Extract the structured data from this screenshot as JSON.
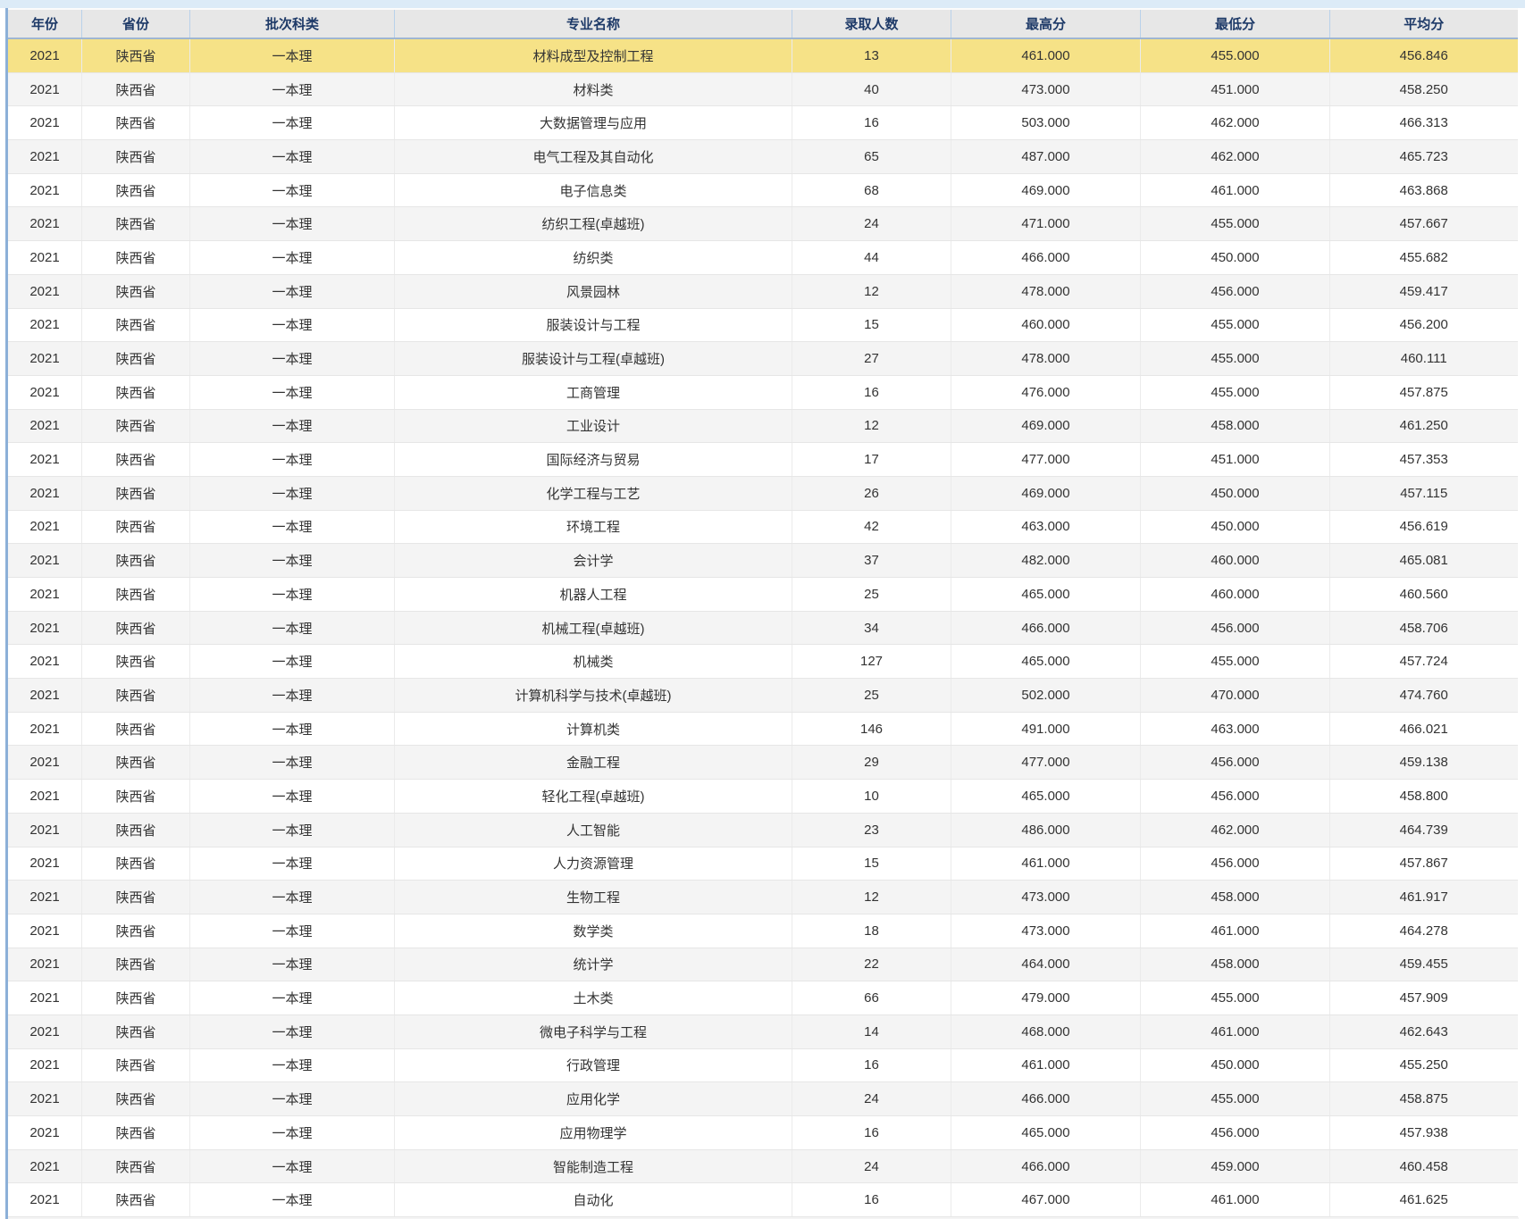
{
  "table": {
    "columns": [
      {
        "key": "year",
        "label": "年份"
      },
      {
        "key": "province",
        "label": "省份"
      },
      {
        "key": "batch",
        "label": "批次科类"
      },
      {
        "key": "major",
        "label": "专业名称"
      },
      {
        "key": "admit-count",
        "label": "录取人数"
      },
      {
        "key": "max-score",
        "label": "最高分"
      },
      {
        "key": "min-score",
        "label": "最低分"
      },
      {
        "key": "avg-score",
        "label": "平均分"
      }
    ],
    "highlighted_row_index": 0,
    "rows": [
      [
        "2021",
        "陕西省",
        "一本理",
        "材料成型及控制工程",
        "13",
        "461.000",
        "455.000",
        "456.846"
      ],
      [
        "2021",
        "陕西省",
        "一本理",
        "材料类",
        "40",
        "473.000",
        "451.000",
        "458.250"
      ],
      [
        "2021",
        "陕西省",
        "一本理",
        "大数据管理与应用",
        "16",
        "503.000",
        "462.000",
        "466.313"
      ],
      [
        "2021",
        "陕西省",
        "一本理",
        "电气工程及其自动化",
        "65",
        "487.000",
        "462.000",
        "465.723"
      ],
      [
        "2021",
        "陕西省",
        "一本理",
        "电子信息类",
        "68",
        "469.000",
        "461.000",
        "463.868"
      ],
      [
        "2021",
        "陕西省",
        "一本理",
        "纺织工程(卓越班)",
        "24",
        "471.000",
        "455.000",
        "457.667"
      ],
      [
        "2021",
        "陕西省",
        "一本理",
        "纺织类",
        "44",
        "466.000",
        "450.000",
        "455.682"
      ],
      [
        "2021",
        "陕西省",
        "一本理",
        "风景园林",
        "12",
        "478.000",
        "456.000",
        "459.417"
      ],
      [
        "2021",
        "陕西省",
        "一本理",
        "服装设计与工程",
        "15",
        "460.000",
        "455.000",
        "456.200"
      ],
      [
        "2021",
        "陕西省",
        "一本理",
        "服装设计与工程(卓越班)",
        "27",
        "478.000",
        "455.000",
        "460.111"
      ],
      [
        "2021",
        "陕西省",
        "一本理",
        "工商管理",
        "16",
        "476.000",
        "455.000",
        "457.875"
      ],
      [
        "2021",
        "陕西省",
        "一本理",
        "工业设计",
        "12",
        "469.000",
        "458.000",
        "461.250"
      ],
      [
        "2021",
        "陕西省",
        "一本理",
        "国际经济与贸易",
        "17",
        "477.000",
        "451.000",
        "457.353"
      ],
      [
        "2021",
        "陕西省",
        "一本理",
        "化学工程与工艺",
        "26",
        "469.000",
        "450.000",
        "457.115"
      ],
      [
        "2021",
        "陕西省",
        "一本理",
        "环境工程",
        "42",
        "463.000",
        "450.000",
        "456.619"
      ],
      [
        "2021",
        "陕西省",
        "一本理",
        "会计学",
        "37",
        "482.000",
        "460.000",
        "465.081"
      ],
      [
        "2021",
        "陕西省",
        "一本理",
        "机器人工程",
        "25",
        "465.000",
        "460.000",
        "460.560"
      ],
      [
        "2021",
        "陕西省",
        "一本理",
        "机械工程(卓越班)",
        "34",
        "466.000",
        "456.000",
        "458.706"
      ],
      [
        "2021",
        "陕西省",
        "一本理",
        "机械类",
        "127",
        "465.000",
        "455.000",
        "457.724"
      ],
      [
        "2021",
        "陕西省",
        "一本理",
        "计算机科学与技术(卓越班)",
        "25",
        "502.000",
        "470.000",
        "474.760"
      ],
      [
        "2021",
        "陕西省",
        "一本理",
        "计算机类",
        "146",
        "491.000",
        "463.000",
        "466.021"
      ],
      [
        "2021",
        "陕西省",
        "一本理",
        "金融工程",
        "29",
        "477.000",
        "456.000",
        "459.138"
      ],
      [
        "2021",
        "陕西省",
        "一本理",
        "轻化工程(卓越班)",
        "10",
        "465.000",
        "456.000",
        "458.800"
      ],
      [
        "2021",
        "陕西省",
        "一本理",
        "人工智能",
        "23",
        "486.000",
        "462.000",
        "464.739"
      ],
      [
        "2021",
        "陕西省",
        "一本理",
        "人力资源管理",
        "15",
        "461.000",
        "456.000",
        "457.867"
      ],
      [
        "2021",
        "陕西省",
        "一本理",
        "生物工程",
        "12",
        "473.000",
        "458.000",
        "461.917"
      ],
      [
        "2021",
        "陕西省",
        "一本理",
        "数学类",
        "18",
        "473.000",
        "461.000",
        "464.278"
      ],
      [
        "2021",
        "陕西省",
        "一本理",
        "统计学",
        "22",
        "464.000",
        "458.000",
        "459.455"
      ],
      [
        "2021",
        "陕西省",
        "一本理",
        "土木类",
        "66",
        "479.000",
        "455.000",
        "457.909"
      ],
      [
        "2021",
        "陕西省",
        "一本理",
        "微电子科学与工程",
        "14",
        "468.000",
        "461.000",
        "462.643"
      ],
      [
        "2021",
        "陕西省",
        "一本理",
        "行政管理",
        "16",
        "461.000",
        "450.000",
        "455.250"
      ],
      [
        "2021",
        "陕西省",
        "一本理",
        "应用化学",
        "24",
        "466.000",
        "455.000",
        "458.875"
      ],
      [
        "2021",
        "陕西省",
        "一本理",
        "应用物理学",
        "16",
        "465.000",
        "456.000",
        "457.938"
      ],
      [
        "2021",
        "陕西省",
        "一本理",
        "智能制造工程",
        "24",
        "466.000",
        "459.000",
        "460.458"
      ],
      [
        "2021",
        "陕西省",
        "一本理",
        "自动化",
        "16",
        "467.000",
        "461.000",
        "461.625"
      ]
    ]
  },
  "colors": {
    "top_strip": "#dcebf7",
    "header_bg": "#e7e7e7",
    "header_text": "#1e3a68",
    "header_border": "#9fb6d2",
    "table_left_border": "#8cb0d8",
    "highlight_row": "#f6e287",
    "alt_row": "#f4f4f4"
  }
}
